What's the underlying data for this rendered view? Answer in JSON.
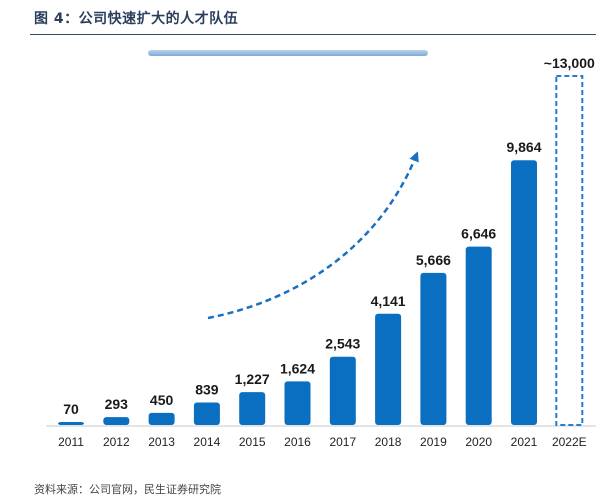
{
  "title": "图 4：公司快速扩大的人才队伍",
  "source": "资料来源：公司官网，民生证券研究院",
  "colors": {
    "bar": "#0a6fc1",
    "estimate_border": "#1f7fd0",
    "arrow": "#1a6fc0",
    "top_band": "#8fb6dc",
    "title": "#2b3f5c"
  },
  "chart_data": {
    "type": "bar",
    "categories": [
      "2011",
      "2012",
      "2013",
      "2014",
      "2015",
      "2016",
      "2017",
      "2018",
      "2019",
      "2020",
      "2021",
      "2022E"
    ],
    "values": [
      70,
      293,
      450,
      839,
      1227,
      1624,
      2543,
      4141,
      5666,
      6646,
      9864,
      13000
    ],
    "labels": [
      "70",
      "293",
      "450",
      "839",
      "1,227",
      "1,624",
      "2,543",
      "4,141",
      "5,666",
      "6,646",
      "9,864",
      "~13,000"
    ],
    "estimate_index": 11,
    "ylim": [
      0,
      13000
    ],
    "xlabel": "",
    "ylabel": "",
    "title": "",
    "grid": false,
    "legend": "none"
  }
}
